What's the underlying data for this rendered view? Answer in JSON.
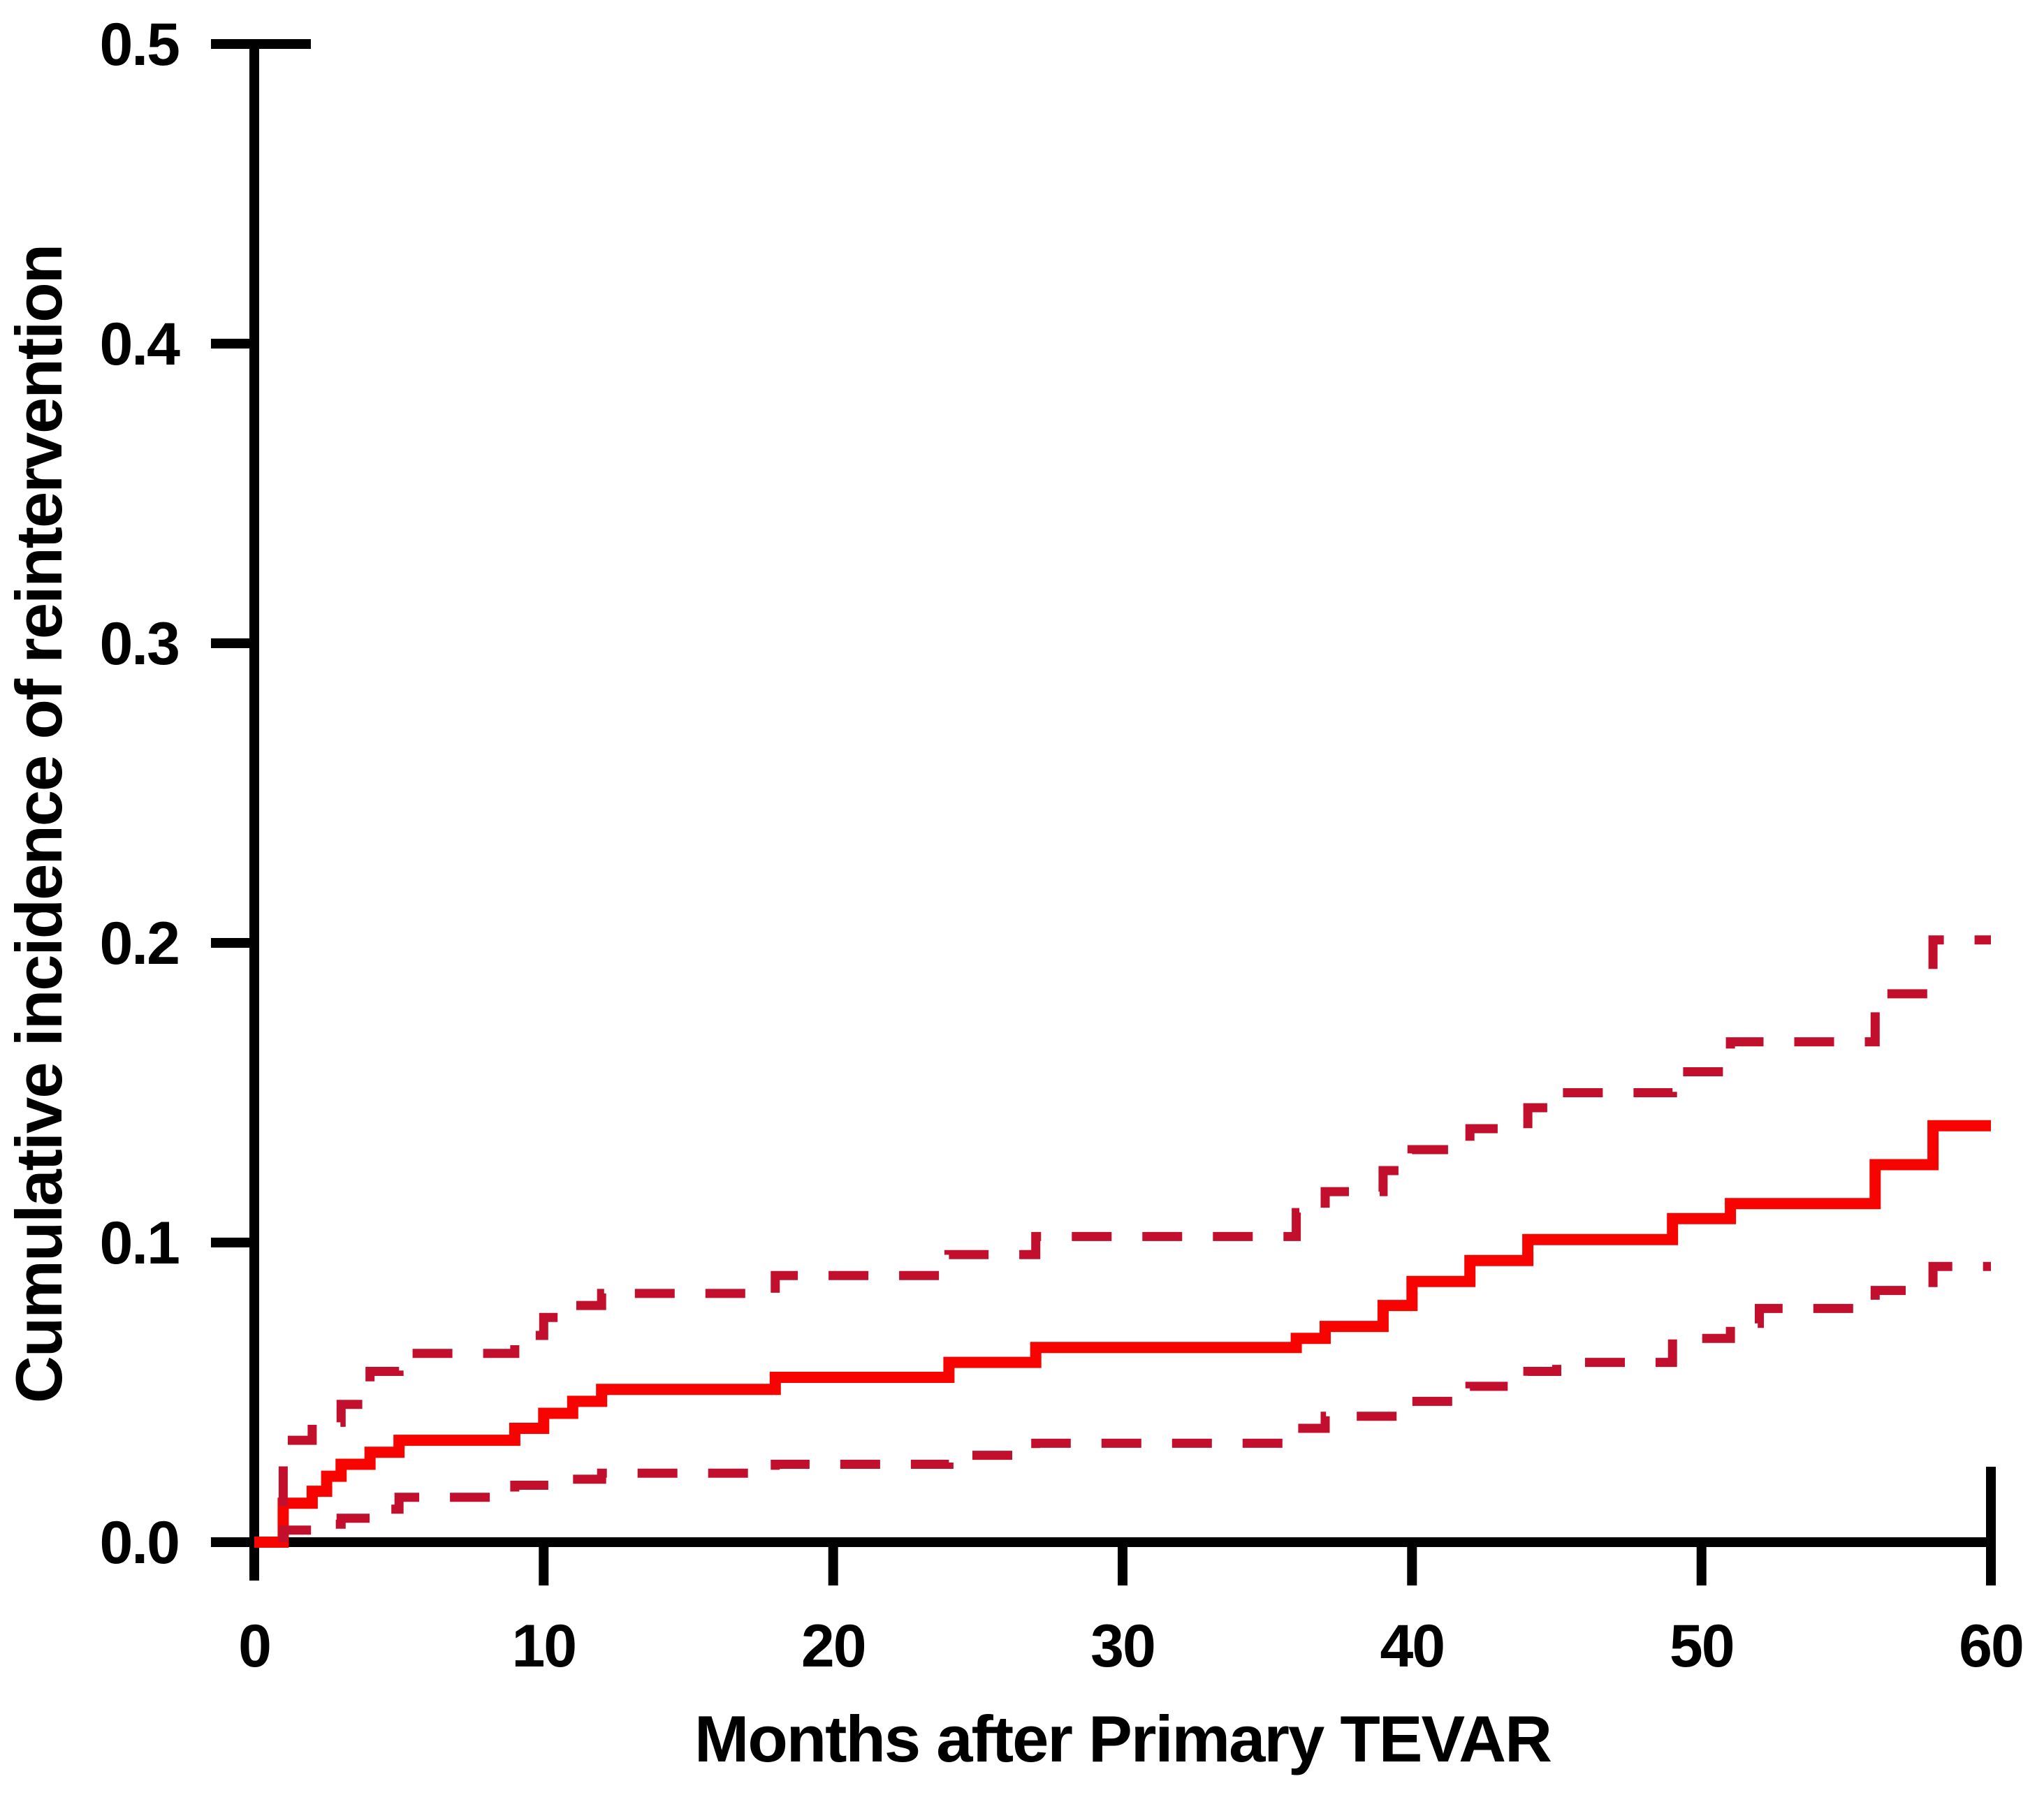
{
  "figure": {
    "background_color": "#ffffff",
    "description": "Step chart of cumulative incidence of reintervention after primary TEVAR with dashed 95% confidence interval bands"
  },
  "chart_data": {
    "type": "line",
    "subtype": "cumulative-incidence-step-function-with-95-percent-CI",
    "title": "",
    "xlabel": "Months after Primary TEVAR",
    "ylabel": "Cumulative incidence of reintervention",
    "xlim": [
      0,
      60
    ],
    "ylim": [
      0.0,
      0.5
    ],
    "xticks": [
      0,
      10,
      20,
      30,
      40,
      50,
      60
    ],
    "ytick_values": [
      0.0,
      0.1,
      0.2,
      0.3,
      0.4,
      0.5
    ],
    "ytick_labels": [
      "0.0",
      "0.1",
      "0.2",
      "0.3",
      "0.4",
      "0.5"
    ],
    "grid": false,
    "legend": "none",
    "colors": {
      "estimate_line": "#f80400",
      "confidence_interval_line": "#c20f2e",
      "axes": "#000000",
      "background": "#ffffff"
    },
    "series": [
      {
        "name": "cumulative-incidence-estimate",
        "line_style": "solid",
        "color": "#f80400",
        "step_points": [
          [
            0,
            0
          ],
          [
            1,
            0.013
          ],
          [
            2,
            0.017
          ],
          [
            2.5,
            0.022
          ],
          [
            3,
            0.026
          ],
          [
            4,
            0.03
          ],
          [
            5,
            0.034
          ],
          [
            9,
            0.038
          ],
          [
            10,
            0.043
          ],
          [
            11,
            0.047
          ],
          [
            12,
            0.051
          ],
          [
            18,
            0.055
          ],
          [
            24,
            0.06
          ],
          [
            27,
            0.065
          ],
          [
            36,
            0.068
          ],
          [
            37,
            0.072
          ],
          [
            39,
            0.079
          ],
          [
            40,
            0.087
          ],
          [
            42,
            0.094
          ],
          [
            44,
            0.101
          ],
          [
            49,
            0.108
          ],
          [
            51,
            0.113
          ],
          [
            56,
            0.126
          ],
          [
            58,
            0.139
          ],
          [
            60,
            0.139
          ]
        ]
      },
      {
        "name": "upper-95-percent-confidence-limit",
        "line_style": "dashed",
        "color": "#c20f2e",
        "step_points": [
          [
            1,
            0.012
          ],
          [
            1,
            0.034
          ],
          [
            2,
            0.04
          ],
          [
            3,
            0.046
          ],
          [
            4,
            0.057
          ],
          [
            5,
            0.063
          ],
          [
            9,
            0.069
          ],
          [
            10,
            0.075
          ],
          [
            11,
            0.079
          ],
          [
            12,
            0.083
          ],
          [
            18,
            0.089
          ],
          [
            24,
            0.096
          ],
          [
            27,
            0.102
          ],
          [
            36,
            0.11
          ],
          [
            37,
            0.117
          ],
          [
            39,
            0.124
          ],
          [
            40,
            0.131
          ],
          [
            42,
            0.138
          ],
          [
            44,
            0.145
          ],
          [
            45,
            0.15
          ],
          [
            49,
            0.157
          ],
          [
            51,
            0.167
          ],
          [
            56,
            0.183
          ],
          [
            58,
            0.201
          ],
          [
            60,
            0.201
          ]
        ]
      },
      {
        "name": "lower-95-percent-confidence-limit",
        "line_style": "dashed",
        "color": "#c20f2e",
        "step_points": [
          [
            1,
            0.0
          ],
          [
            1,
            0.004
          ],
          [
            2,
            0.006
          ],
          [
            3,
            0.008
          ],
          [
            4,
            0.011
          ],
          [
            5,
            0.015
          ],
          [
            9,
            0.019
          ],
          [
            11,
            0.021
          ],
          [
            12,
            0.023
          ],
          [
            18,
            0.026
          ],
          [
            24,
            0.029
          ],
          [
            27,
            0.033
          ],
          [
            36,
            0.038
          ],
          [
            37,
            0.042
          ],
          [
            40,
            0.047
          ],
          [
            42,
            0.052
          ],
          [
            44,
            0.057
          ],
          [
            45,
            0.06
          ],
          [
            49,
            0.068
          ],
          [
            51,
            0.073
          ],
          [
            52,
            0.078
          ],
          [
            56,
            0.084
          ],
          [
            58,
            0.092
          ],
          [
            60,
            0.092
          ]
        ]
      }
    ]
  }
}
